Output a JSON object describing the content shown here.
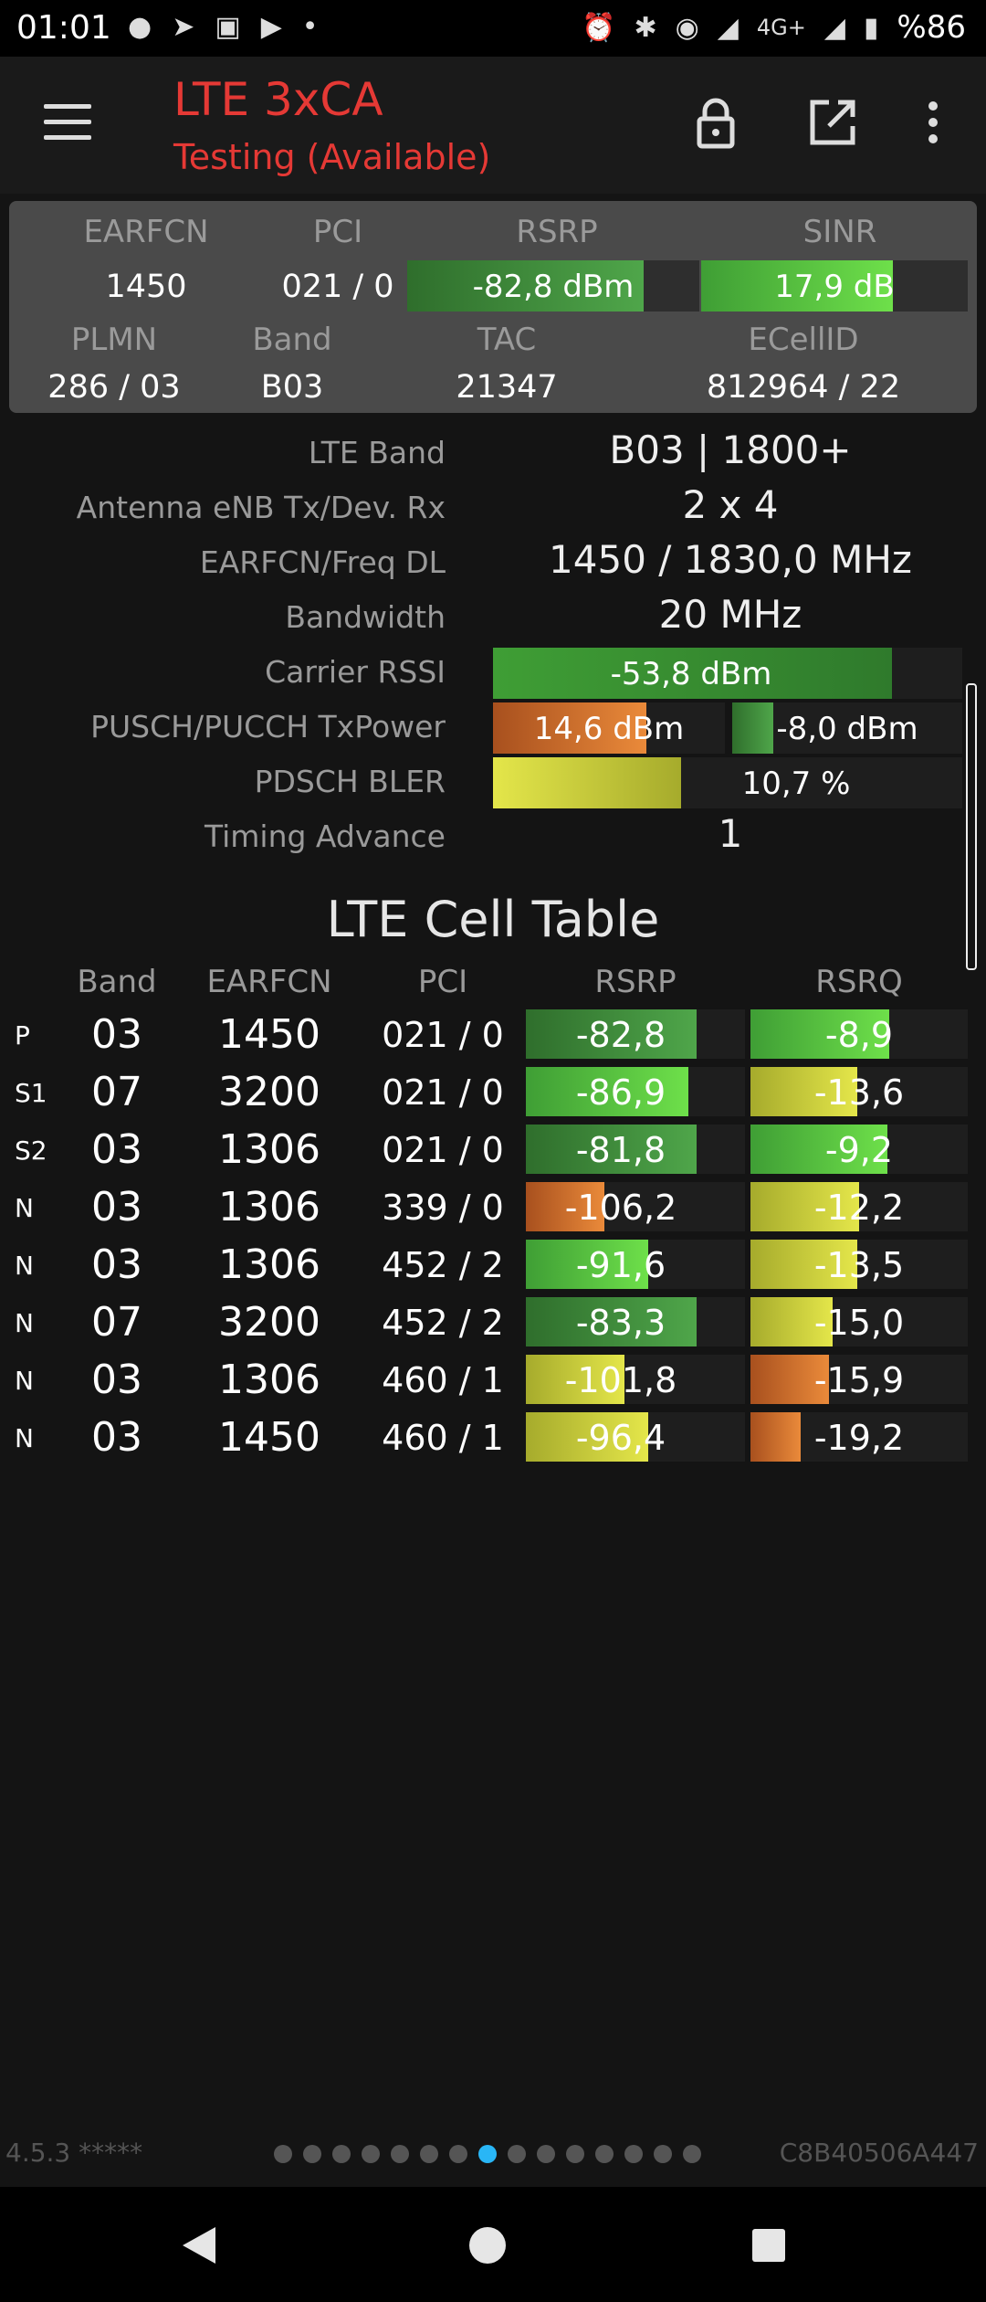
{
  "status_bar": {
    "time": "01:01",
    "left_icons": [
      "chat-bubble-icon",
      "telegram-icon",
      "instagram-icon",
      "youtube-icon",
      "dot-icon"
    ],
    "right_icons": [
      "alarm-icon",
      "bluetooth-icon",
      "location-icon",
      "signal-icon",
      "signal-icon"
    ],
    "network": "4G+",
    "battery": "%86"
  },
  "app_bar": {
    "title": "LTE 3xCA",
    "subtitle": "Testing (Available)",
    "icons": [
      "menu-icon",
      "lock-icon",
      "open-external-icon",
      "more-vert-icon"
    ]
  },
  "summary": {
    "headers": [
      "EARFCN",
      "PCI",
      "RSRP",
      "SINR",
      "PLMN",
      "Band",
      "TAC",
      "ECellID"
    ],
    "earfcn": "1450",
    "pci": "021 / 0",
    "rsrp": "-82,8 dBm",
    "rsrp_fill": 0.81,
    "sinr": "17,9 dB",
    "sinr_fill": 0.72,
    "plmn": "286 / 03",
    "band": "B03",
    "tac": "21347",
    "ecellid": "812964 / 22"
  },
  "details": {
    "lte_band": {
      "label": "LTE Band",
      "value": "B03 | 1800+"
    },
    "antenna": {
      "label": "Antenna eNB Tx/Dev. Rx",
      "value": "2 x 4"
    },
    "earfcn_freq": {
      "label": "EARFCN/Freq DL",
      "value": "1450 / 1830,0 MHz"
    },
    "bandwidth": {
      "label": "Bandwidth",
      "value": "20 MHz"
    },
    "rssi": {
      "label": "Carrier RSSI",
      "value": "-53,8 dBm",
      "fill": 0.85
    },
    "txpower": {
      "label": "PUSCH/PUCCH TxPower",
      "pusch": "14,6 dBm",
      "pusch_fill": 0.66,
      "pucch": "-8,0 dBm",
      "pucch_fill": 0.18
    },
    "bler": {
      "label": "PDSCH BLER",
      "value": "10,7 %",
      "fill": 0.4
    },
    "timing_advance": {
      "label": "Timing Advance",
      "value": "1"
    }
  },
  "cell_table": {
    "title": "LTE Cell Table",
    "headers": [
      "Band",
      "EARFCN",
      "PCI",
      "RSRP",
      "RSRQ"
    ],
    "rows": [
      {
        "type": "P",
        "band": "03",
        "earfcn": "1450",
        "pci": "021 / 0",
        "rsrp": "-82,8",
        "rsrp_fill": 0.78,
        "rsrq": "-8,9",
        "rsrq_fill": 0.64
      },
      {
        "type": "S1",
        "band": "07",
        "earfcn": "3200",
        "pci": "021 / 0",
        "rsrp": "-86,9",
        "rsrp_fill": 0.74,
        "rsrq": "-13,6",
        "rsrq_fill": 0.49
      },
      {
        "type": "S2",
        "band": "03",
        "earfcn": "1306",
        "pci": "021 / 0",
        "rsrp": "-81,8",
        "rsrp_fill": 0.78,
        "rsrq": "-9,2",
        "rsrq_fill": 0.63
      },
      {
        "type": "N",
        "band": "03",
        "earfcn": "1306",
        "pci": "339 / 0",
        "rsrp": "-106,2",
        "rsrp_fill": 0.36,
        "rsrq": "-12,2",
        "rsrq_fill": 0.5
      },
      {
        "type": "N",
        "band": "03",
        "earfcn": "1306",
        "pci": "452 / 2",
        "rsrp": "-91,6",
        "rsrp_fill": 0.56,
        "rsrq": "-13,5",
        "rsrq_fill": 0.49
      },
      {
        "type": "N",
        "band": "07",
        "earfcn": "3200",
        "pci": "452 / 2",
        "rsrp": "-83,3",
        "rsrp_fill": 0.78,
        "rsrq": "-15,0",
        "rsrq_fill": 0.38
      },
      {
        "type": "N",
        "band": "03",
        "earfcn": "1306",
        "pci": "460 / 1",
        "rsrp": "-101,8",
        "rsrp_fill": 0.45,
        "rsrq": "-15,9",
        "rsrq_fill": 0.36
      },
      {
        "type": "N",
        "band": "03",
        "earfcn": "1450",
        "pci": "460 / 1",
        "rsrp": "-96,4",
        "rsrp_fill": 0.56,
        "rsrq": "-19,2",
        "rsrq_fill": 0.23
      }
    ]
  },
  "footer": {
    "version": "4.5.3 *****",
    "device_id": "C8B40506A447",
    "page_count": 15,
    "active_page": 8
  },
  "colors": {
    "accent": "#e53935",
    "green": "#5ecf3c",
    "dark_green": "#3f9a3a",
    "orange": "#e0762a",
    "yellow": "#d6d83a",
    "page_dot_active": "#29b6f6"
  }
}
